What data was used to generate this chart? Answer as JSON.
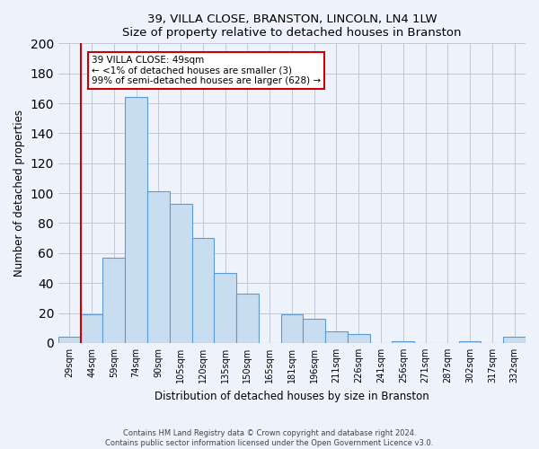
{
  "title": "39, VILLA CLOSE, BRANSTON, LINCOLN, LN4 1LW",
  "subtitle": "Size of property relative to detached houses in Branston",
  "xlabel": "Distribution of detached houses by size in Branston",
  "ylabel": "Number of detached properties",
  "bar_labels": [
    "29sqm",
    "44sqm",
    "59sqm",
    "74sqm",
    "90sqm",
    "105sqm",
    "120sqm",
    "135sqm",
    "150sqm",
    "165sqm",
    "181sqm",
    "196sqm",
    "211sqm",
    "226sqm",
    "241sqm",
    "256sqm",
    "271sqm",
    "287sqm",
    "302sqm",
    "317sqm",
    "332sqm"
  ],
  "bar_values": [
    4,
    19,
    57,
    164,
    101,
    93,
    70,
    47,
    33,
    0,
    19,
    16,
    8,
    6,
    0,
    1,
    0,
    0,
    1,
    0,
    4
  ],
  "bar_color": "#c9ddf0",
  "bar_edge_color": "#5b9bd5",
  "vline_color": "#cc0000",
  "ylim": [
    0,
    200
  ],
  "yticks": [
    0,
    20,
    40,
    60,
    80,
    100,
    120,
    140,
    160,
    180,
    200
  ],
  "annotation_title": "39 VILLA CLOSE: 49sqm",
  "annotation_line1": "← <1% of detached houses are smaller (3)",
  "annotation_line2": "99% of semi-detached houses are larger (628) →",
  "footnote1": "Contains HM Land Registry data © Crown copyright and database right 2024.",
  "footnote2": "Contains public sector information licensed under the Open Government Licence v3.0.",
  "bg_color": "#eef2fb",
  "plot_bg_color": "#eef2fb",
  "grid_color": "#c0c8d8"
}
